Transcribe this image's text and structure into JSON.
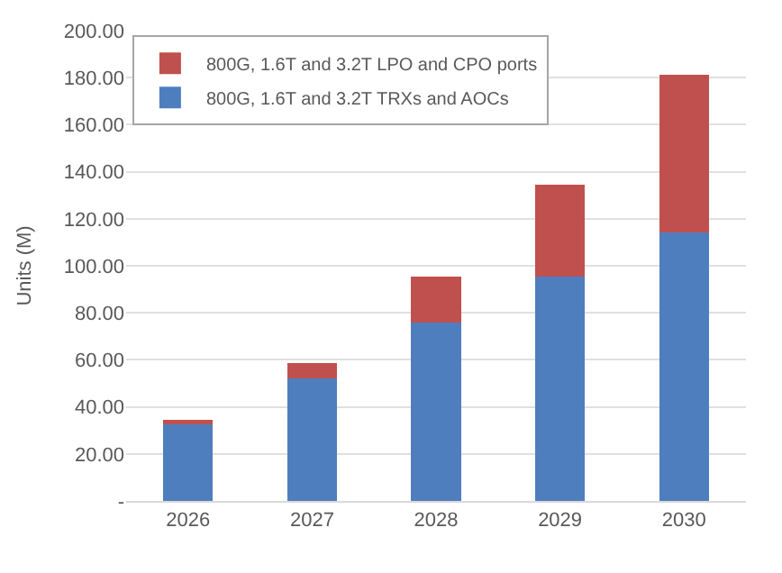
{
  "chart_data": {
    "type": "bar",
    "stacked": true,
    "ylabel": "Units (M)",
    "categories": [
      "2026",
      "2027",
      "2028",
      "2029",
      "2030"
    ],
    "series": [
      {
        "name": "800G, 1.6T and 3.2T TRXs and AOCs",
        "color": "#4f7ebf",
        "values": [
          32.5,
          52.3,
          76,
          95.5,
          114.3
        ]
      },
      {
        "name": "800G, 1.6T and 3.2T LPO and CPO ports",
        "color": "#c0504d",
        "values": [
          1.8,
          6.2,
          19.5,
          39,
          67
        ]
      }
    ],
    "ylim": [
      0,
      200
    ],
    "yticks": [
      {
        "value": 0,
        "label": "-"
      },
      {
        "value": 20,
        "label": "20.00"
      },
      {
        "value": 40,
        "label": "40.00"
      },
      {
        "value": 60,
        "label": "60.00"
      },
      {
        "value": 80,
        "label": "80.00"
      },
      {
        "value": 100,
        "label": "100.00"
      },
      {
        "value": 120,
        "label": "120.00"
      },
      {
        "value": 140,
        "label": "140.00"
      },
      {
        "value": 160,
        "label": "160.00"
      },
      {
        "value": 180,
        "label": "180.00"
      },
      {
        "value": 200,
        "label": "200.00"
      }
    ],
    "grid": "y",
    "legend": "top left"
  }
}
